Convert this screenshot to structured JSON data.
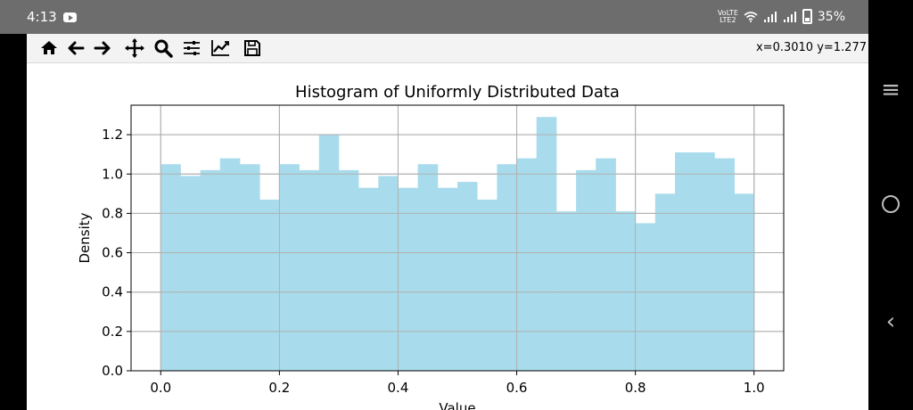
{
  "status_bar": {
    "time": "4:13",
    "network_label": "VoLTE",
    "network_sub": "LTE2",
    "battery": "35%",
    "icons": [
      "youtube-icon",
      "wifi-icon",
      "signal-icon",
      "signal-icon",
      "battery-icon"
    ]
  },
  "toolbar": {
    "buttons": [
      "home-icon",
      "back-arrow-icon",
      "forward-arrow-icon",
      "pan-icon",
      "zoom-icon",
      "subplots-icon",
      "edit-axis-icon",
      "save-icon"
    ],
    "coordinates": "x=0.3010 y=1.277"
  },
  "nav_buttons": [
    "menu-icon",
    "home-circle-icon",
    "back-icon"
  ],
  "chart_data": {
    "type": "bar",
    "title": "Histogram of Uniformly Distributed Data",
    "xlabel": "Value",
    "ylabel": "Density",
    "xlim": [
      -0.05,
      1.05
    ],
    "ylim": [
      0,
      1.35
    ],
    "grid": true,
    "color": "#a8dcec",
    "bin_edges": [
      0.0,
      0.0333,
      0.0667,
      0.1,
      0.1333,
      0.1667,
      0.2,
      0.2333,
      0.2667,
      0.3,
      0.3333,
      0.3667,
      0.4,
      0.4333,
      0.4667,
      0.5,
      0.5333,
      0.5667,
      0.6,
      0.6333,
      0.6667,
      0.7,
      0.7333,
      0.7667,
      0.8,
      0.8333,
      0.8667,
      0.9,
      0.9333,
      0.9667,
      1.0
    ],
    "values": [
      1.05,
      0.99,
      1.02,
      1.08,
      1.05,
      0.87,
      1.05,
      1.02,
      1.2,
      1.02,
      0.93,
      0.99,
      0.93,
      1.05,
      0.93,
      0.96,
      0.87,
      1.05,
      1.08,
      1.29,
      0.81,
      1.02,
      1.08,
      0.81,
      0.75,
      0.9,
      1.11,
      1.11,
      1.08,
      0.9
    ],
    "xticks": [
      0.0,
      0.2,
      0.4,
      0.6,
      0.8,
      1.0
    ],
    "xtick_labels": [
      "0.0",
      "0.2",
      "0.4",
      "0.6",
      "0.8",
      "1.0"
    ],
    "yticks": [
      0.0,
      0.2,
      0.4,
      0.6,
      0.8,
      1.0,
      1.2
    ],
    "ytick_labels": [
      "0.0",
      "0.2",
      "0.4",
      "0.6",
      "0.8",
      "1.0",
      "1.2"
    ]
  }
}
